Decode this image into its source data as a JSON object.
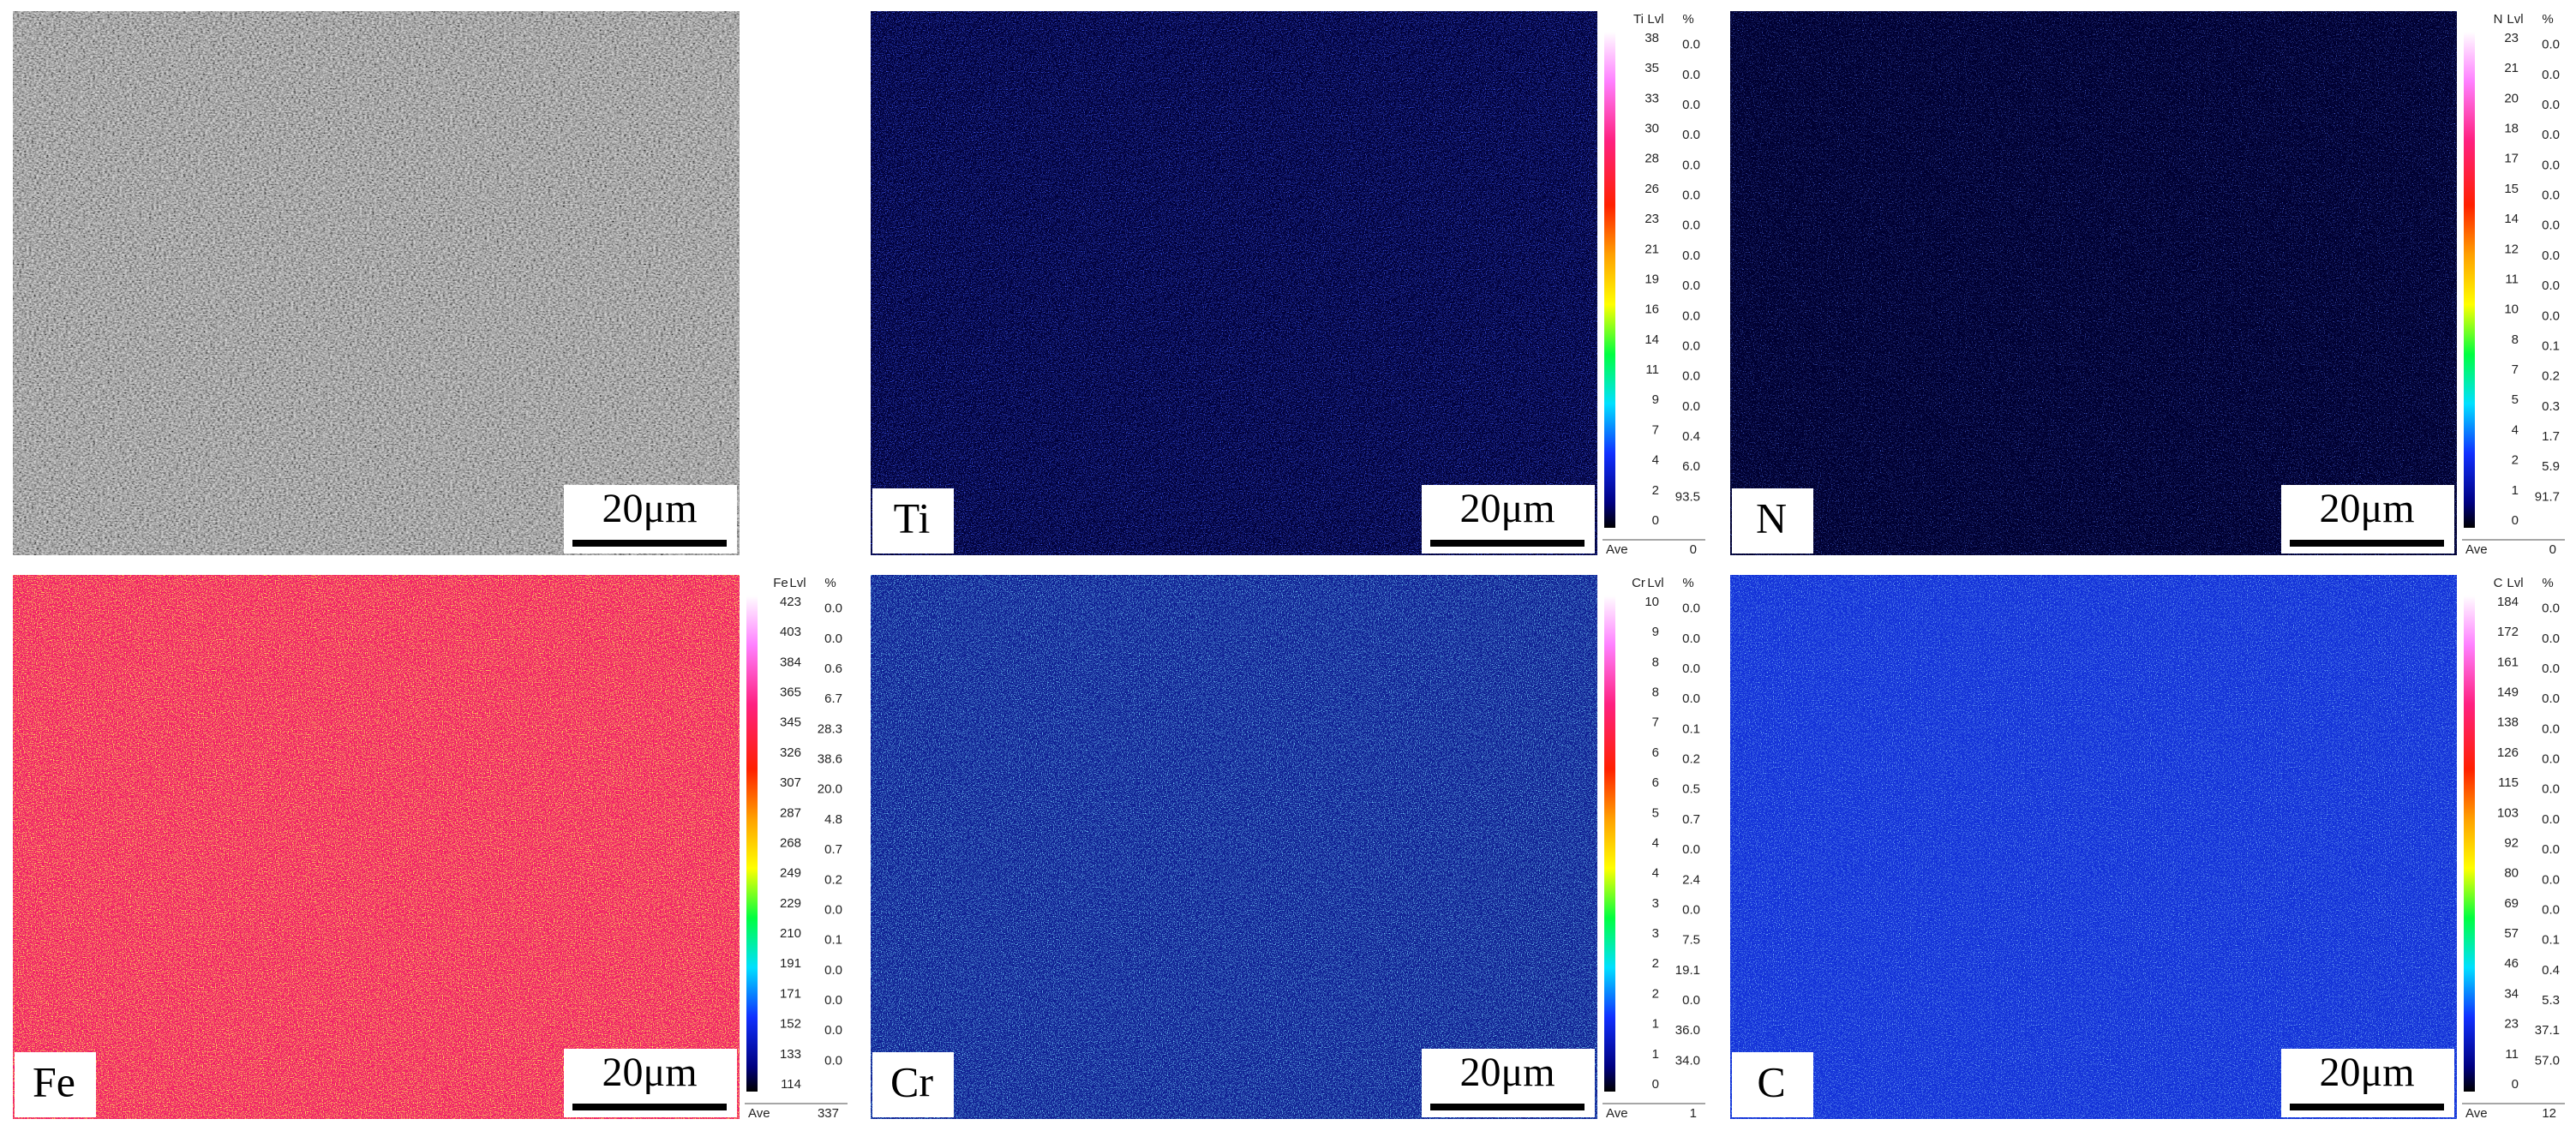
{
  "panels": [
    {
      "scale_bar": "20μm"
    },
    {
      "element": "Ti",
      "scale_bar": "20μm",
      "legend": {
        "lvl_header": "Lvl",
        "pct_header": "%",
        "levels": [
          38,
          35,
          33,
          30,
          28,
          26,
          23,
          21,
          19,
          16,
          14,
          11,
          9,
          7,
          4,
          2,
          0
        ],
        "percents": [
          "0.0",
          "0.0",
          "0.0",
          "0.0",
          "0.0",
          "0.0",
          "0.0",
          "0.0",
          "0.0",
          "0.0",
          "0.0",
          "0.0",
          "0.0",
          "0.4",
          "6.0",
          "93.5"
        ],
        "ave_label": "Ave",
        "ave_value": 0
      }
    },
    {
      "element": "N",
      "scale_bar": "20μm",
      "legend": {
        "lvl_header": "Lvl",
        "pct_header": "%",
        "levels": [
          23,
          21,
          20,
          18,
          17,
          15,
          14,
          12,
          11,
          10,
          8,
          7,
          5,
          4,
          2,
          1,
          0
        ],
        "percents": [
          "0.0",
          "0.0",
          "0.0",
          "0.0",
          "0.0",
          "0.0",
          "0.0",
          "0.0",
          "0.0",
          "0.0",
          "0.1",
          "0.2",
          "0.3",
          "1.7",
          "5.9",
          "91.7"
        ],
        "ave_label": "Ave",
        "ave_value": 0
      }
    },
    {
      "element": "Fe",
      "scale_bar": "20μm",
      "legend": {
        "lvl_header": "Lvl",
        "pct_header": "%",
        "levels": [
          423,
          403,
          384,
          365,
          345,
          326,
          307,
          287,
          268,
          249,
          229,
          210,
          191,
          171,
          152,
          133,
          114
        ],
        "percents": [
          "0.0",
          "0.0",
          "0.6",
          "6.7",
          "28.3",
          "38.6",
          "20.0",
          "4.8",
          "0.7",
          "0.2",
          "0.0",
          "0.1",
          "0.0",
          "0.0",
          "0.0",
          "0.0"
        ],
        "ave_label": "Ave",
        "ave_value": 337
      }
    },
    {
      "element": "Cr",
      "scale_bar": "20μm",
      "legend": {
        "lvl_header": "Lvl",
        "pct_header": "%",
        "levels": [
          10,
          9,
          8,
          8,
          7,
          6,
          6,
          5,
          4,
          4,
          3,
          3,
          2,
          2,
          1,
          1,
          0
        ],
        "percents": [
          "0.0",
          "0.0",
          "0.0",
          "0.0",
          "0.1",
          "0.2",
          "0.5",
          "0.7",
          "0.0",
          "2.4",
          "0.0",
          "7.5",
          "19.1",
          "0.0",
          "36.0",
          "34.0"
        ],
        "ave_label": "Ave",
        "ave_value": 1
      }
    },
    {
      "element": "C",
      "scale_bar": "20μm",
      "legend": {
        "lvl_header": "Lvl",
        "pct_header": "%",
        "levels": [
          184,
          172,
          161,
          149,
          138,
          126,
          115,
          103,
          92,
          80,
          69,
          57,
          46,
          34,
          23,
          11,
          0
        ],
        "percents": [
          "0.0",
          "0.0",
          "0.0",
          "0.0",
          "0.0",
          "0.0",
          "0.0",
          "0.0",
          "0.0",
          "0.0",
          "0.0",
          "0.1",
          "0.4",
          "5.3",
          "37.1",
          "57.0"
        ],
        "ave_label": "Ave",
        "ave_value": 12
      }
    }
  ]
}
